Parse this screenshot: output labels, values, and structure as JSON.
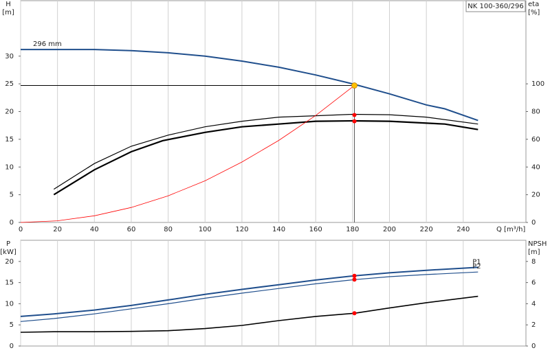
{
  "chart_data": [
    {
      "type": "line",
      "title": "NK 100-360/296",
      "x_label": "Q [m³/h]",
      "y_label": "H",
      "y_unit": "[m]",
      "y2_label": "eta",
      "y2_unit": "[%]",
      "xlim": [
        0,
        274
      ],
      "xticks": [
        0,
        20,
        40,
        60,
        80,
        100,
        120,
        140,
        160,
        180,
        200,
        220,
        240
      ],
      "ylim": [
        0,
        40
      ],
      "yticks": [
        0,
        5,
        10,
        15,
        20,
        25,
        30
      ],
      "y2lim": [
        0,
        160
      ],
      "y2ticks": [
        0,
        20,
        40,
        60,
        80,
        100
      ],
      "grid": "x",
      "series": [
        {
          "name": "296 mm",
          "color": "#1f4e8c",
          "width": 2,
          "label_at": "start",
          "x": [
            0,
            20,
            40,
            60,
            80,
            100,
            120,
            140,
            160,
            180,
            200,
            220,
            230,
            248
          ],
          "values": [
            31.2,
            31.2,
            31.2,
            31.0,
            30.6,
            30.0,
            29.1,
            28.0,
            26.6,
            25.0,
            23.2,
            21.2,
            20.5,
            18.4
          ]
        },
        {
          "color": "#000000",
          "width": 1.2,
          "axis": "y2",
          "x": [
            18,
            40,
            60,
            80,
            100,
            120,
            140,
            160,
            180,
            200,
            220,
            248
          ],
          "values": [
            24,
            42.5,
            55,
            63,
            69,
            73,
            76,
            77,
            78,
            77.7,
            76,
            71
          ]
        },
        {
          "color": "#000000",
          "width": 2.2,
          "axis": "y2",
          "x": [
            18,
            40,
            60,
            77,
            100,
            120,
            140,
            160,
            180,
            200,
            230,
            248
          ],
          "values": [
            20,
            38,
            51,
            59,
            65,
            69,
            71,
            73,
            73.3,
            73,
            71,
            67
          ]
        },
        {
          "color": "#ff0000",
          "width": 0.8,
          "x": [
            0,
            20,
            40,
            60,
            80,
            100,
            120,
            140,
            160,
            181
          ],
          "values": [
            0,
            0.3,
            1.2,
            2.7,
            4.8,
            7.5,
            10.9,
            14.8,
            19.3,
            24.7
          ]
        }
      ],
      "operating_point": {
        "x": 181,
        "y": 24.7,
        "color": "#ffc000"
      },
      "markers": [
        {
          "x": 181,
          "y": 77.5,
          "axis": "y2",
          "color": "#ff0000"
        },
        {
          "x": 181,
          "y": 73,
          "axis": "y2",
          "color": "#ff0000"
        }
      ]
    },
    {
      "type": "line",
      "y_label": "P",
      "y_unit": "[kW]",
      "y2_label": "NPSH",
      "y2_unit": "[m]",
      "xlim": [
        0,
        274
      ],
      "xticks": [
        0,
        20,
        40,
        60,
        80,
        100,
        120,
        140,
        160,
        180,
        200,
        220,
        240
      ],
      "ylim": [
        0,
        25
      ],
      "yticks": [
        0,
        5,
        10,
        15,
        20
      ],
      "y2lim": [
        0,
        10
      ],
      "y2ticks": [
        0,
        2,
        4,
        6,
        8
      ],
      "grid": "x",
      "series": [
        {
          "name": "P1",
          "color": "#1f4e8c",
          "width": 2,
          "label_at": "end",
          "x": [
            0,
            18,
            40,
            60,
            80,
            100,
            120,
            140,
            160,
            181,
            200,
            220,
            248
          ],
          "values": [
            7.0,
            7.6,
            8.5,
            9.6,
            10.9,
            12.2,
            13.4,
            14.5,
            15.6,
            16.6,
            17.3,
            17.9,
            18.6
          ]
        },
        {
          "name": "P2",
          "color": "#1f4e8c",
          "width": 1.2,
          "label_at": "end",
          "x": [
            0,
            18,
            40,
            60,
            80,
            100,
            120,
            140,
            160,
            181,
            200,
            220,
            248
          ],
          "values": [
            5.8,
            6.5,
            7.6,
            8.8,
            10.0,
            11.3,
            12.5,
            13.6,
            14.7,
            15.7,
            16.4,
            16.9,
            17.5
          ]
        },
        {
          "color": "#000000",
          "width": 1.6,
          "axis": "y2",
          "x": [
            0,
            18,
            40,
            60,
            80,
            100,
            120,
            140,
            160,
            181,
            200,
            220,
            248
          ],
          "values": [
            1.3,
            1.35,
            1.35,
            1.38,
            1.45,
            1.65,
            1.95,
            2.4,
            2.8,
            3.1,
            3.6,
            4.1,
            4.7
          ]
        }
      ],
      "markers": [
        {
          "x": 181,
          "y": 16.6,
          "color": "#ff0000"
        },
        {
          "x": 181,
          "y": 15.7,
          "color": "#ff0000"
        },
        {
          "x": 181,
          "y": 3.1,
          "axis": "y2",
          "color": "#ff0000"
        }
      ]
    }
  ]
}
